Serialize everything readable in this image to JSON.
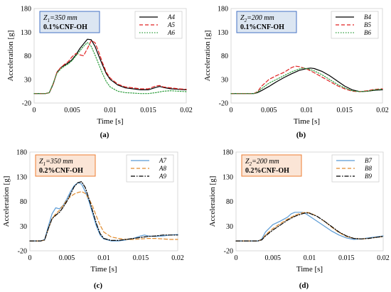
{
  "chart_data": [
    {
      "type": "line",
      "panel": "(a)",
      "xlabel": "Time [s]",
      "ylabel": "Acceleration [g]",
      "xlim": [
        0,
        0.02
      ],
      "ylim": [
        -20,
        180
      ],
      "xticks": [
        "0",
        "0.005",
        "0.01",
        "0.015",
        "0.02"
      ],
      "yticks": [
        "-20",
        "30",
        "80",
        "130",
        "180"
      ],
      "annotation": {
        "height_label": "Z",
        "height_sub": "1",
        "height_value": "=350 mm",
        "material": "0.1%CNF-OH",
        "fill": "#dce6f2",
        "stroke": "#4472c4"
      },
      "legend": "top-right",
      "series": [
        {
          "name": "A4",
          "color": "#000000",
          "dash": "solid",
          "x": [
            0,
            0.0015,
            0.002,
            0.0025,
            0.003,
            0.0035,
            0.004,
            0.0045,
            0.005,
            0.0055,
            0.006,
            0.0065,
            0.007,
            0.0075,
            0.008,
            0.0085,
            0.009,
            0.0095,
            0.01,
            0.011,
            0.012,
            0.013,
            0.014,
            0.015,
            0.016,
            0.0165,
            0.017,
            0.018,
            0.019,
            0.02
          ],
          "y": [
            0,
            0,
            2,
            20,
            45,
            55,
            60,
            65,
            72,
            82,
            95,
            105,
            115,
            114,
            100,
            80,
            60,
            42,
            30,
            18,
            12,
            10,
            8,
            8,
            13,
            15,
            13,
            10,
            9,
            8
          ]
        },
        {
          "name": "A5",
          "color": "#e02020",
          "dash": "dashed",
          "x": [
            0,
            0.0015,
            0.002,
            0.0025,
            0.003,
            0.0035,
            0.004,
            0.0045,
            0.005,
            0.0055,
            0.006,
            0.0065,
            0.007,
            0.0075,
            0.008,
            0.0085,
            0.009,
            0.0095,
            0.01,
            0.011,
            0.012,
            0.013,
            0.014,
            0.015,
            0.016,
            0.0165,
            0.017,
            0.018,
            0.019,
            0.02
          ],
          "y": [
            0,
            0,
            2,
            20,
            45,
            55,
            62,
            68,
            78,
            85,
            82,
            80,
            95,
            112,
            108,
            88,
            65,
            45,
            33,
            20,
            14,
            12,
            10,
            10,
            16,
            17,
            14,
            12,
            10,
            9
          ]
        },
        {
          "name": "A6",
          "color": "#2e9e3e",
          "dash": "dotted",
          "x": [
            0,
            0.0015,
            0.002,
            0.0025,
            0.003,
            0.0035,
            0.004,
            0.0045,
            0.005,
            0.0055,
            0.006,
            0.0065,
            0.007,
            0.0075,
            0.008,
            0.0085,
            0.009,
            0.0095,
            0.01,
            0.011,
            0.012,
            0.013,
            0.014,
            0.015,
            0.016,
            0.017,
            0.018,
            0.019,
            0.02
          ],
          "y": [
            0,
            0,
            2,
            22,
            43,
            52,
            58,
            63,
            70,
            80,
            90,
            100,
            108,
            100,
            82,
            62,
            42,
            25,
            14,
            5,
            2,
            1,
            0,
            0,
            2,
            5,
            6,
            5,
            4
          ]
        }
      ]
    },
    {
      "type": "line",
      "panel": "(b)",
      "xlabel": "Time [s]",
      "ylabel": "Acceleration [g]",
      "xlim": [
        0,
        0.02
      ],
      "ylim": [
        -20,
        180
      ],
      "xticks": [
        "0",
        "0.005",
        "0.01",
        "0.015",
        "0.02"
      ],
      "yticks": [
        "-20",
        "30",
        "80",
        "130",
        "180"
      ],
      "annotation": {
        "height_label": "Z",
        "height_sub": "2",
        "height_value": "=200 mm",
        "material": "0.1%CNF-OH",
        "fill": "#dce6f2",
        "stroke": "#4472c4"
      },
      "legend": "top-right",
      "series": [
        {
          "name": "B4",
          "color": "#000000",
          "dash": "solid",
          "x": [
            0,
            0.003,
            0.0035,
            0.004,
            0.005,
            0.006,
            0.007,
            0.008,
            0.009,
            0.01,
            0.0105,
            0.011,
            0.012,
            0.013,
            0.014,
            0.015,
            0.016,
            0.017,
            0.018,
            0.019,
            0.02
          ],
          "y": [
            0,
            0,
            2,
            6,
            15,
            25,
            34,
            42,
            49,
            53,
            54,
            53,
            47,
            38,
            27,
            16,
            8,
            4,
            5,
            7,
            8
          ]
        },
        {
          "name": "B5",
          "color": "#e02020",
          "dash": "dashed",
          "x": [
            0,
            0.003,
            0.0035,
            0.004,
            0.005,
            0.006,
            0.007,
            0.008,
            0.0085,
            0.009,
            0.01,
            0.011,
            0.012,
            0.013,
            0.014,
            0.015,
            0.016,
            0.017,
            0.018,
            0.019,
            0.02
          ],
          "y": [
            0,
            0,
            4,
            15,
            30,
            38,
            45,
            55,
            58,
            57,
            52,
            44,
            35,
            26,
            17,
            10,
            5,
            4,
            6,
            9,
            10
          ]
        },
        {
          "name": "B6",
          "color": "#2e9e3e",
          "dash": "dotted",
          "x": [
            0,
            0.003,
            0.0035,
            0.004,
            0.005,
            0.006,
            0.007,
            0.008,
            0.009,
            0.0095,
            0.01,
            0.011,
            0.012,
            0.013,
            0.014,
            0.015,
            0.016,
            0.017,
            0.018,
            0.019,
            0.02
          ],
          "y": [
            0,
            0,
            3,
            10,
            22,
            30,
            38,
            46,
            52,
            54,
            53,
            48,
            40,
            30,
            20,
            12,
            6,
            4,
            5,
            8,
            9
          ]
        }
      ]
    },
    {
      "type": "line",
      "panel": "(c)",
      "xlabel": "Time [s]",
      "ylabel": "Acceleration [g]",
      "xlim": [
        0,
        0.02
      ],
      "ylim": [
        -20,
        180
      ],
      "xticks": [
        "0",
        "0.005",
        "0.01",
        "0.015",
        "0.02"
      ],
      "yticks": [
        "-20",
        "30",
        "80",
        "130",
        "180"
      ],
      "annotation": {
        "height_label": "Z",
        "height_sub": "1",
        "height_value": "=350 mm",
        "material": "0.2%CNF-OH",
        "fill": "#fbe5d6",
        "stroke": "#ed7d31"
      },
      "legend": "top-right",
      "series": [
        {
          "name": "A7",
          "color": "#5b9bd5",
          "dash": "solid",
          "x": [
            0,
            0.0015,
            0.002,
            0.0025,
            0.003,
            0.0035,
            0.004,
            0.0045,
            0.005,
            0.0055,
            0.006,
            0.0065,
            0.007,
            0.0075,
            0.008,
            0.0085,
            0.009,
            0.0095,
            0.01,
            0.011,
            0.012,
            0.013,
            0.014,
            0.015,
            0.0155,
            0.016,
            0.017,
            0.018,
            0.019,
            0.02
          ],
          "y": [
            0,
            0,
            3,
            30,
            55,
            67,
            65,
            72,
            85,
            100,
            112,
            118,
            115,
            100,
            80,
            55,
            30,
            12,
            4,
            0,
            0,
            2,
            5,
            10,
            12,
            10,
            9,
            10,
            12,
            13
          ]
        },
        {
          "name": "A8",
          "color": "#e08b2e",
          "dash": "dashed",
          "x": [
            0,
            0.0015,
            0.002,
            0.0025,
            0.003,
            0.0035,
            0.004,
            0.0045,
            0.005,
            0.0055,
            0.006,
            0.0065,
            0.007,
            0.0075,
            0.008,
            0.0085,
            0.009,
            0.0095,
            0.01,
            0.011,
            0.012,
            0.013,
            0.014,
            0.015,
            0.016,
            0.017,
            0.018,
            0.019,
            0.02
          ],
          "y": [
            0,
            0,
            2,
            25,
            45,
            55,
            62,
            72,
            82,
            90,
            95,
            98,
            100,
            96,
            85,
            70,
            50,
            32,
            18,
            8,
            5,
            3,
            3,
            4,
            5,
            5,
            4,
            3,
            3
          ]
        },
        {
          "name": "A9",
          "color": "#000000",
          "dash": "dashdot",
          "x": [
            0,
            0.0015,
            0.002,
            0.0025,
            0.003,
            0.0035,
            0.004,
            0.0045,
            0.005,
            0.0055,
            0.006,
            0.0065,
            0.007,
            0.0075,
            0.008,
            0.0085,
            0.009,
            0.0095,
            0.01,
            0.011,
            0.012,
            0.013,
            0.014,
            0.015,
            0.016,
            0.017,
            0.018,
            0.019,
            0.02
          ],
          "y": [
            0,
            0,
            2,
            25,
            45,
            52,
            58,
            68,
            80,
            95,
            110,
            118,
            120,
            108,
            85,
            60,
            35,
            15,
            5,
            1,
            1,
            3,
            5,
            7,
            9,
            10,
            12,
            12,
            12
          ]
        }
      ]
    },
    {
      "type": "line",
      "panel": "(d)",
      "xlabel": "Time [s]",
      "ylabel": "Acceleration [g]",
      "xlim": [
        0,
        0.02
      ],
      "ylim": [
        -20,
        180
      ],
      "xticks": [
        "0",
        "0.005",
        "0.01",
        "0.015",
        "0.02"
      ],
      "yticks": [
        "-20",
        "30",
        "80",
        "130",
        "180"
      ],
      "annotation": {
        "height_label": "Z",
        "height_sub": "2",
        "height_value": "=200 mm",
        "material": "0.2%CNF-OH",
        "fill": "#fbe5d6",
        "stroke": "#ed7d31"
      },
      "legend": "top-right",
      "series": [
        {
          "name": "B7",
          "color": "#5b9bd5",
          "dash": "solid",
          "x": [
            0,
            0.003,
            0.0035,
            0.004,
            0.005,
            0.006,
            0.007,
            0.0075,
            0.008,
            0.009,
            0.0095,
            0.01,
            0.011,
            0.012,
            0.013,
            0.014,
            0.015,
            0.016,
            0.017,
            0.018,
            0.019,
            0.02
          ],
          "y": [
            0,
            0,
            4,
            18,
            33,
            40,
            48,
            55,
            58,
            58,
            55,
            50,
            40,
            30,
            20,
            12,
            6,
            3,
            4,
            6,
            8,
            10
          ]
        },
        {
          "name": "B8",
          "color": "#e08b2e",
          "dash": "dashed",
          "x": [
            0,
            0.003,
            0.0035,
            0.004,
            0.005,
            0.006,
            0.007,
            0.008,
            0.009,
            0.0095,
            0.01,
            0.011,
            0.012,
            0.013,
            0.014,
            0.015,
            0.016,
            0.017,
            0.018,
            0.019,
            0.02
          ],
          "y": [
            0,
            0,
            3,
            12,
            25,
            35,
            44,
            52,
            57,
            58,
            57,
            50,
            40,
            28,
            17,
            9,
            5,
            4,
            5,
            7,
            9
          ]
        },
        {
          "name": "B9",
          "color": "#000000",
          "dash": "dashdot",
          "x": [
            0,
            0.003,
            0.0035,
            0.004,
            0.005,
            0.006,
            0.007,
            0.008,
            0.009,
            0.0095,
            0.01,
            0.011,
            0.012,
            0.013,
            0.014,
            0.015,
            0.016,
            0.017,
            0.018,
            0.019,
            0.02
          ],
          "y": [
            0,
            0,
            2,
            10,
            22,
            32,
            42,
            50,
            55,
            57,
            56,
            50,
            40,
            29,
            18,
            10,
            5,
            4,
            5,
            7,
            9
          ]
        }
      ]
    }
  ]
}
